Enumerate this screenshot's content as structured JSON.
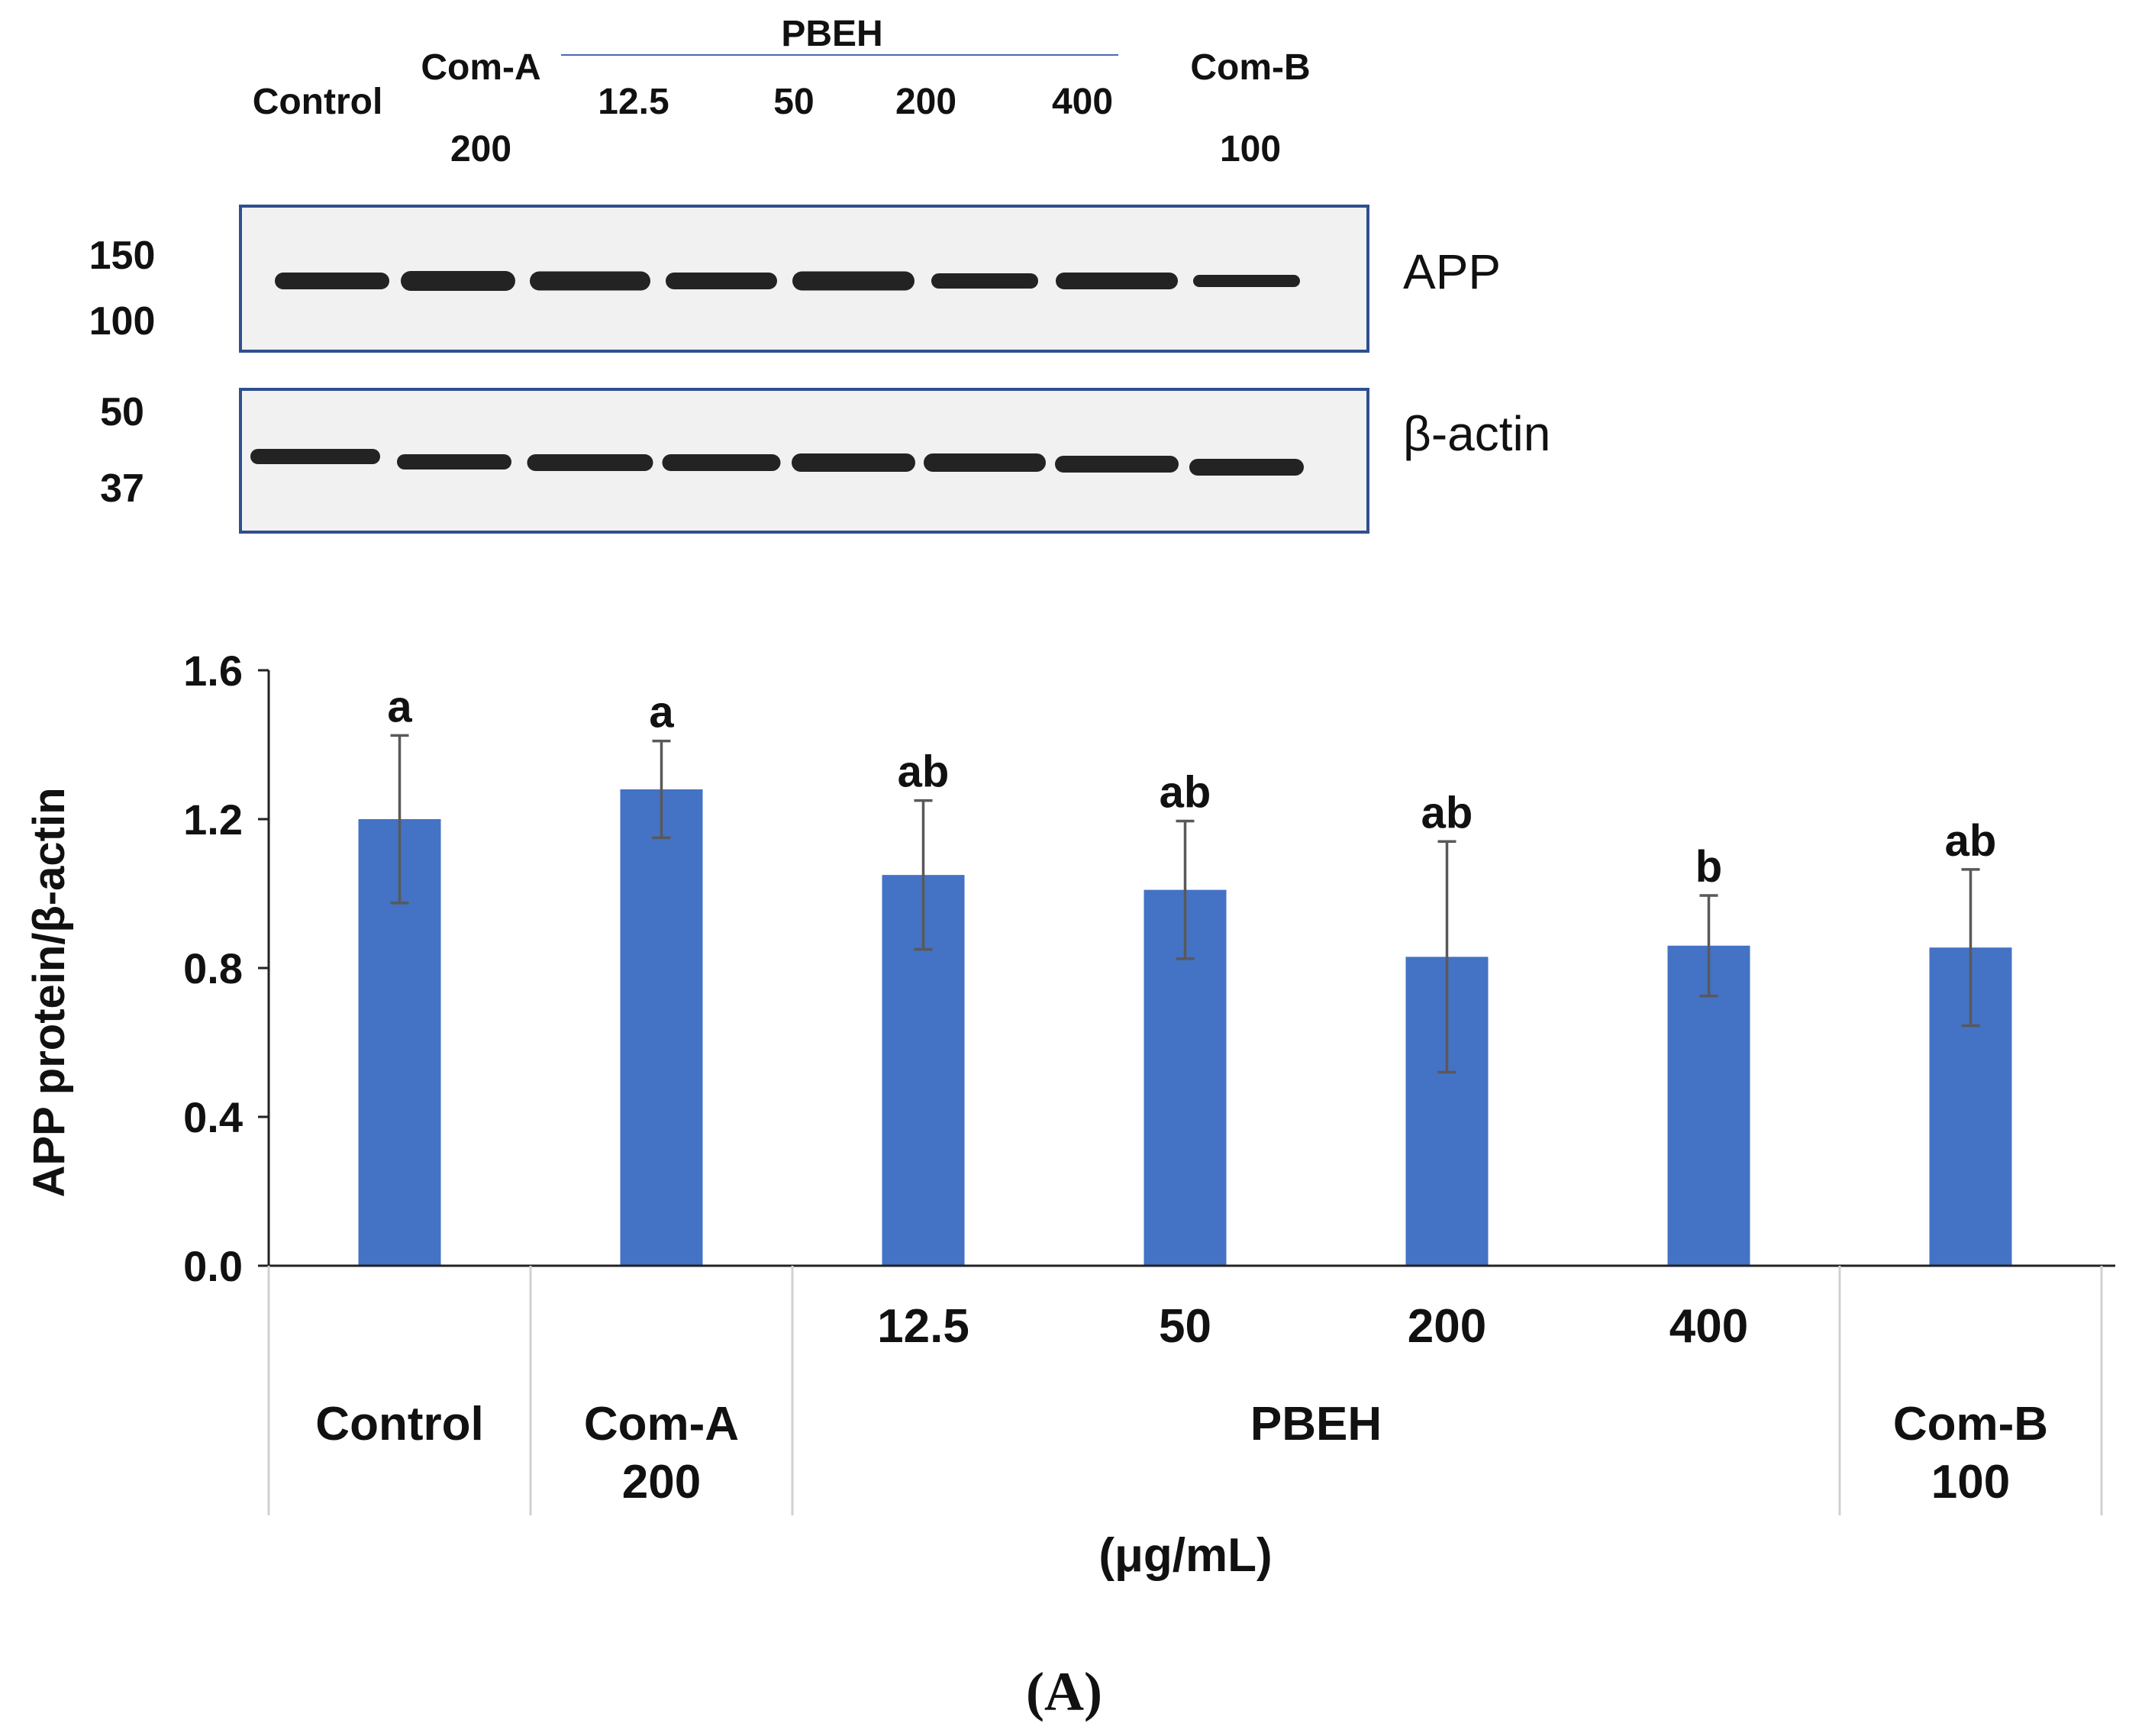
{
  "blot": {
    "lane_labels": [
      {
        "line1": "Control",
        "line2": ""
      },
      {
        "line1": "Com-A",
        "line2": "200"
      },
      {
        "line1": "12.5",
        "line2": ""
      },
      {
        "line1": "50",
        "line2": ""
      },
      {
        "line1": "200",
        "line2": ""
      },
      {
        "line1": "400",
        "line2": ""
      },
      {
        "line1": "Com-B",
        "line2": "100"
      }
    ],
    "group_label": "PBEH",
    "panels": [
      {
        "name": "APP",
        "markers": [
          "150",
          "100"
        ]
      },
      {
        "name": "β-actin",
        "markers": [
          "50",
          "37"
        ]
      }
    ],
    "colors": {
      "frame": "#2f4f8f",
      "band": "#111111",
      "blot_bg": "#f1f1f1"
    }
  },
  "chart_data": {
    "type": "bar",
    "ylabel": "APP protein/β-actin",
    "xlabel": "(μg/mL)",
    "ylim": [
      0.0,
      1.6
    ],
    "yticks": [
      "0.0",
      "0.4",
      "0.8",
      "1.2",
      "1.6"
    ],
    "categories": [
      "Control",
      "Com-A 200",
      "PBEH 12.5",
      "PBEH 50",
      "PBEH 200",
      "PBEH 400",
      "Com-B 100"
    ],
    "values": [
      1.2,
      1.28,
      1.05,
      1.01,
      0.83,
      0.86,
      0.855
    ],
    "errors": [
      0.225,
      0.13,
      0.2,
      0.185,
      0.31,
      0.135,
      0.21
    ],
    "significance": [
      "a",
      "a",
      "ab",
      "ab",
      "ab",
      "b",
      "ab"
    ],
    "x_table": {
      "row1": [
        "",
        "",
        "12.5",
        "50",
        "200",
        "400",
        ""
      ],
      "groups": [
        {
          "line1": "Control",
          "line2": ""
        },
        {
          "line1": "Com-A",
          "line2": "200"
        },
        {
          "line1": "PBEH",
          "line2": ""
        },
        {
          "line1": "Com-B",
          "line2": "100"
        }
      ]
    },
    "bar_color": "#4472c4",
    "error_color": "#595959"
  },
  "panel_label": "(A)"
}
